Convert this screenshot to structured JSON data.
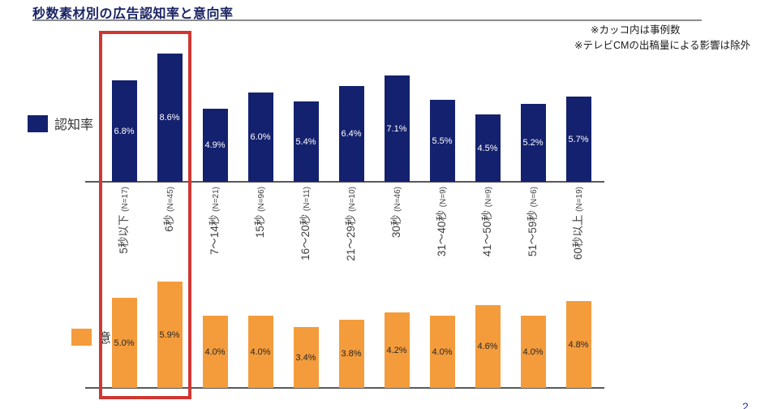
{
  "title": "秒数素材別の広告認知率と意向率",
  "notes": {
    "note1": "※カッコ内は事例数",
    "note2": "※テレビCMの出稿量による影響は除外"
  },
  "legend": {
    "awareness_label": "認知率",
    "intent_label": "意向率"
  },
  "colors": {
    "navy": "#14216e",
    "orange": "#f49c3c",
    "highlight_red": "#cf3732",
    "axis_gray": "#595959",
    "title_navy": "#1a2464"
  },
  "page_number": "2",
  "chart_data": {
    "type": "bar",
    "title": "秒数素材別の広告認知率と意向率",
    "categories": [
      "5秒以下",
      "6秒",
      "7〜14秒",
      "15秒",
      "16〜20秒",
      "21〜29秒",
      "30秒",
      "31〜40秒",
      "41〜50秒",
      "51〜59秒",
      "60秒以上"
    ],
    "n_labels": [
      "(N=17)",
      "(N=45)",
      "(N=21)",
      "(N=96)",
      "(N=11)",
      "(N=10)",
      "(N=46)",
      "(N=9)",
      "(N=9)",
      "(N=6)",
      "(N=19)"
    ],
    "series": [
      {
        "name": "認知率",
        "color": "#14216e",
        "values": [
          6.8,
          8.6,
          4.9,
          6.0,
          5.4,
          6.4,
          7.1,
          5.5,
          4.5,
          5.2,
          5.7
        ],
        "labels": [
          "6.8%",
          "8.6%",
          "4.9%",
          "6.0%",
          "5.4%",
          "6.4%",
          "7.1%",
          "5.5%",
          "4.5%",
          "5.2%",
          "5.7%"
        ]
      },
      {
        "name": "意向率",
        "color": "#f49c3c",
        "values": [
          5.0,
          5.9,
          4.0,
          4.0,
          3.4,
          3.8,
          4.2,
          4.0,
          4.6,
          4.0,
          4.8
        ],
        "labels": [
          "5.0%",
          "5.9%",
          "4.0%",
          "4.0%",
          "3.4%",
          "3.8%",
          "4.2%",
          "4.0%",
          "4.6%",
          "4.0%",
          "4.8%"
        ]
      }
    ],
    "unit": "%",
    "annotations": [
      "※カッコ内は事例数",
      "※テレビCMの出稿量による影響は除外"
    ],
    "highlight": "first two categories (5秒以下, 6秒) outlined with red box",
    "legend_position": "left",
    "grid": false
  }
}
